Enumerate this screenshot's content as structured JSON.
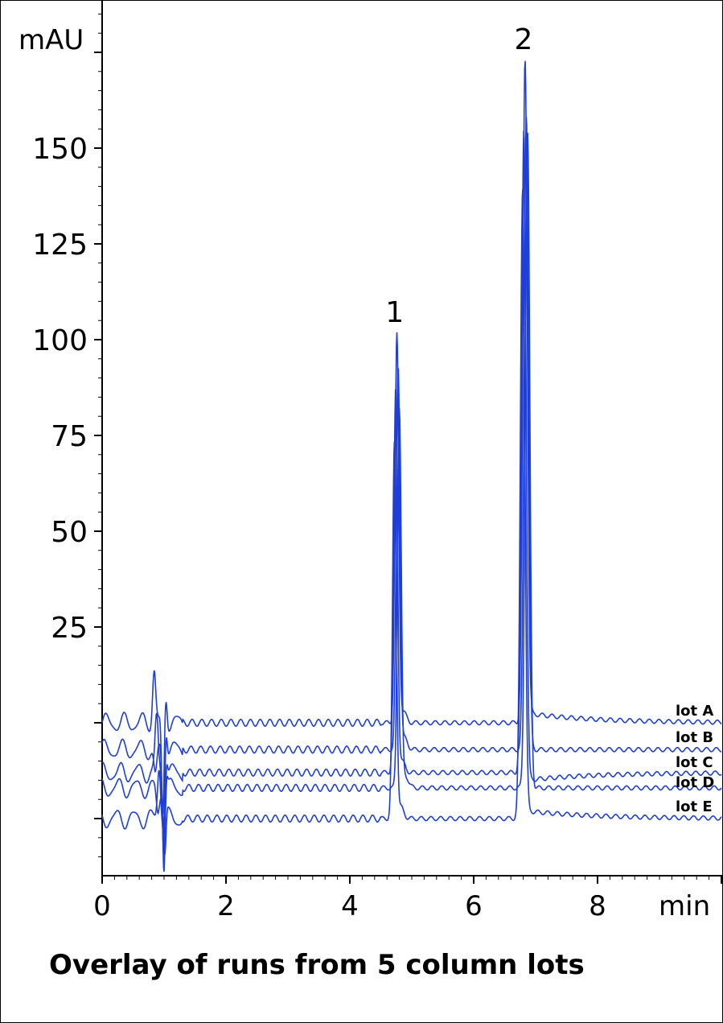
{
  "chart_data": {
    "type": "line",
    "title": "Overlay of runs from 5 column lots",
    "xlabel": "min",
    "ylabel": "mAU",
    "xlim": [
      0,
      10
    ],
    "ylim": [
      -40,
      185
    ],
    "x_ticks": [
      0,
      2,
      4,
      6,
      8
    ],
    "x_tick_labels": [
      "0",
      "2",
      "4",
      "6",
      "8"
    ],
    "y_ticks": [
      25,
      50,
      75,
      100,
      125,
      150
    ],
    "y_tick_labels": [
      "25",
      "50",
      "75",
      100,
      "125",
      "150"
    ],
    "grid": false,
    "line_color": "#1f3fd6",
    "peaks": [
      {
        "label": "1",
        "x": 4.75,
        "height": 101
      },
      {
        "label": "2",
        "x": 6.83,
        "height": 173
      }
    ],
    "series": [
      {
        "name": "lot A",
        "baseline": 0,
        "peak1_x": 4.76,
        "peak1_h": 101,
        "peak2_x": 6.83,
        "peak2_h": 173
      },
      {
        "name": "lot B",
        "baseline": -7,
        "peak1_x": 4.78,
        "peak1_h": 100,
        "peak2_x": 6.85,
        "peak2_h": 166
      },
      {
        "name": "lot C",
        "baseline": -13,
        "peak1_x": 4.74,
        "peak1_h": 100,
        "peak2_x": 6.81,
        "peak2_h": 168
      },
      {
        "name": "lot D",
        "baseline": -17,
        "peak1_x": 4.8,
        "peak1_h": 99,
        "peak2_x": 6.87,
        "peak2_h": 171
      },
      {
        "name": "lot E",
        "baseline": -25,
        "peak1_x": 4.72,
        "peak1_h": 98,
        "peak2_x": 6.79,
        "peak2_h": 165
      }
    ]
  }
}
